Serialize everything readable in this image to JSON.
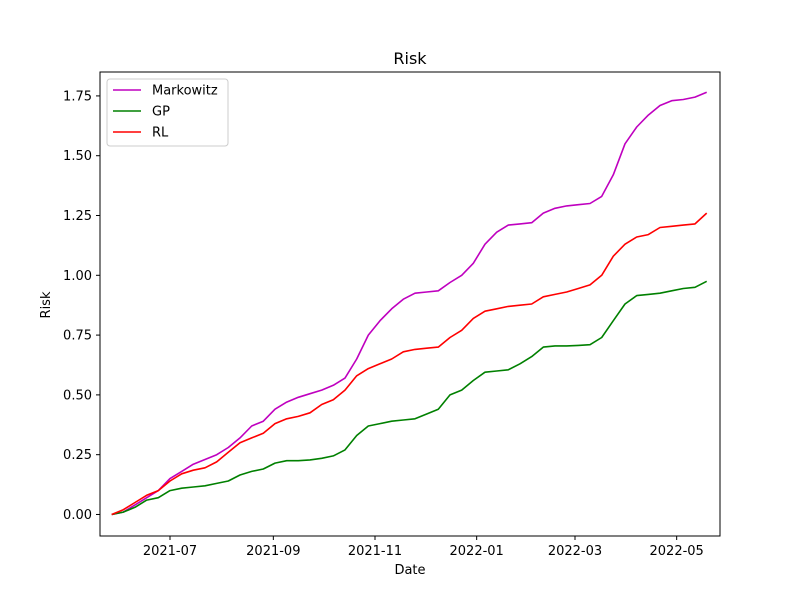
{
  "chart_data": {
    "type": "line",
    "title": "Risk",
    "xlabel": "Date",
    "ylabel": "Risk",
    "xlim": [
      "2021-05-20",
      "2022-05-27"
    ],
    "ylim": [
      -0.09,
      1.85
    ],
    "x_ticks": [
      "2021-07",
      "2021-09",
      "2021-11",
      "2022-01",
      "2022-03",
      "2022-05"
    ],
    "y_ticks": [
      "0.00",
      "0.25",
      "0.50",
      "0.75",
      "1.00",
      "1.25",
      "1.50",
      "1.75"
    ],
    "grid": false,
    "legend_placement": "upper-left",
    "series": [
      {
        "name": "Markowitz",
        "color": "#bf00bf",
        "points": [
          [
            "2021-05-27",
            0.0
          ],
          [
            "2021-06-03",
            0.01
          ],
          [
            "2021-06-10",
            0.04
          ],
          [
            "2021-06-17",
            0.07
          ],
          [
            "2021-06-24",
            0.1
          ],
          [
            "2021-07-01",
            0.15
          ],
          [
            "2021-07-08",
            0.18
          ],
          [
            "2021-07-15",
            0.21
          ],
          [
            "2021-07-22",
            0.23
          ],
          [
            "2021-07-29",
            0.25
          ],
          [
            "2021-08-05",
            0.28
          ],
          [
            "2021-08-12",
            0.32
          ],
          [
            "2021-08-19",
            0.37
          ],
          [
            "2021-08-26",
            0.39
          ],
          [
            "2021-09-02",
            0.44
          ],
          [
            "2021-09-09",
            0.47
          ],
          [
            "2021-09-16",
            0.49
          ],
          [
            "2021-09-23",
            0.505
          ],
          [
            "2021-09-30",
            0.52
          ],
          [
            "2021-10-07",
            0.54
          ],
          [
            "2021-10-14",
            0.57
          ],
          [
            "2021-10-21",
            0.65
          ],
          [
            "2021-10-28",
            0.75
          ],
          [
            "2021-11-04",
            0.81
          ],
          [
            "2021-11-11",
            0.86
          ],
          [
            "2021-11-18",
            0.9
          ],
          [
            "2021-11-25",
            0.925
          ],
          [
            "2021-12-02",
            0.93
          ],
          [
            "2021-12-09",
            0.935
          ],
          [
            "2021-12-16",
            0.97
          ],
          [
            "2021-12-23",
            1.0
          ],
          [
            "2021-12-30",
            1.05
          ],
          [
            "2022-01-06",
            1.13
          ],
          [
            "2022-01-13",
            1.18
          ],
          [
            "2022-01-20",
            1.21
          ],
          [
            "2022-01-27",
            1.215
          ],
          [
            "2022-02-03",
            1.22
          ],
          [
            "2022-02-10",
            1.26
          ],
          [
            "2022-02-17",
            1.28
          ],
          [
            "2022-02-24",
            1.29
          ],
          [
            "2022-03-03",
            1.295
          ],
          [
            "2022-03-10",
            1.3
          ],
          [
            "2022-03-17",
            1.33
          ],
          [
            "2022-03-24",
            1.42
          ],
          [
            "2022-03-31",
            1.55
          ],
          [
            "2022-04-07",
            1.62
          ],
          [
            "2022-04-14",
            1.67
          ],
          [
            "2022-04-21",
            1.71
          ],
          [
            "2022-04-28",
            1.73
          ],
          [
            "2022-05-05",
            1.735
          ],
          [
            "2022-05-12",
            1.745
          ],
          [
            "2022-05-19",
            1.765
          ]
        ]
      },
      {
        "name": "GP",
        "color": "#008000",
        "points": [
          [
            "2021-05-27",
            0.0
          ],
          [
            "2021-06-03",
            0.01
          ],
          [
            "2021-06-10",
            0.03
          ],
          [
            "2021-06-17",
            0.06
          ],
          [
            "2021-06-24",
            0.07
          ],
          [
            "2021-07-01",
            0.1
          ],
          [
            "2021-07-08",
            0.11
          ],
          [
            "2021-07-15",
            0.115
          ],
          [
            "2021-07-22",
            0.12
          ],
          [
            "2021-07-29",
            0.13
          ],
          [
            "2021-08-05",
            0.14
          ],
          [
            "2021-08-12",
            0.165
          ],
          [
            "2021-08-19",
            0.18
          ],
          [
            "2021-08-26",
            0.19
          ],
          [
            "2021-09-02",
            0.215
          ],
          [
            "2021-09-09",
            0.225
          ],
          [
            "2021-09-16",
            0.225
          ],
          [
            "2021-09-23",
            0.228
          ],
          [
            "2021-09-30",
            0.235
          ],
          [
            "2021-10-07",
            0.245
          ],
          [
            "2021-10-14",
            0.27
          ],
          [
            "2021-10-21",
            0.33
          ],
          [
            "2021-10-28",
            0.37
          ],
          [
            "2021-11-04",
            0.38
          ],
          [
            "2021-11-11",
            0.39
          ],
          [
            "2021-11-18",
            0.395
          ],
          [
            "2021-11-25",
            0.4
          ],
          [
            "2021-12-02",
            0.42
          ],
          [
            "2021-12-09",
            0.44
          ],
          [
            "2021-12-16",
            0.5
          ],
          [
            "2021-12-23",
            0.52
          ],
          [
            "2021-12-30",
            0.56
          ],
          [
            "2022-01-06",
            0.595
          ],
          [
            "2022-01-13",
            0.6
          ],
          [
            "2022-01-20",
            0.605
          ],
          [
            "2022-01-27",
            0.63
          ],
          [
            "2022-02-03",
            0.66
          ],
          [
            "2022-02-10",
            0.7
          ],
          [
            "2022-02-17",
            0.705
          ],
          [
            "2022-02-24",
            0.705
          ],
          [
            "2022-03-03",
            0.707
          ],
          [
            "2022-03-10",
            0.71
          ],
          [
            "2022-03-17",
            0.74
          ],
          [
            "2022-03-24",
            0.81
          ],
          [
            "2022-03-31",
            0.88
          ],
          [
            "2022-04-07",
            0.915
          ],
          [
            "2022-04-14",
            0.92
          ],
          [
            "2022-04-21",
            0.925
          ],
          [
            "2022-04-28",
            0.935
          ],
          [
            "2022-05-05",
            0.945
          ],
          [
            "2022-05-12",
            0.95
          ],
          [
            "2022-05-19",
            0.975
          ]
        ]
      },
      {
        "name": "RL",
        "color": "#ff0000",
        "points": [
          [
            "2021-05-27",
            0.0
          ],
          [
            "2021-06-03",
            0.02
          ],
          [
            "2021-06-10",
            0.05
          ],
          [
            "2021-06-17",
            0.08
          ],
          [
            "2021-06-24",
            0.1
          ],
          [
            "2021-07-01",
            0.14
          ],
          [
            "2021-07-08",
            0.17
          ],
          [
            "2021-07-15",
            0.185
          ],
          [
            "2021-07-22",
            0.195
          ],
          [
            "2021-07-29",
            0.22
          ],
          [
            "2021-08-05",
            0.26
          ],
          [
            "2021-08-12",
            0.3
          ],
          [
            "2021-08-19",
            0.32
          ],
          [
            "2021-08-26",
            0.34
          ],
          [
            "2021-09-02",
            0.38
          ],
          [
            "2021-09-09",
            0.4
          ],
          [
            "2021-09-16",
            0.41
          ],
          [
            "2021-09-23",
            0.425
          ],
          [
            "2021-09-30",
            0.46
          ],
          [
            "2021-10-07",
            0.48
          ],
          [
            "2021-10-14",
            0.52
          ],
          [
            "2021-10-21",
            0.58
          ],
          [
            "2021-10-28",
            0.61
          ],
          [
            "2021-11-04",
            0.63
          ],
          [
            "2021-11-11",
            0.65
          ],
          [
            "2021-11-18",
            0.68
          ],
          [
            "2021-11-25",
            0.69
          ],
          [
            "2021-12-02",
            0.695
          ],
          [
            "2021-12-09",
            0.7
          ],
          [
            "2021-12-16",
            0.74
          ],
          [
            "2021-12-23",
            0.77
          ],
          [
            "2021-12-30",
            0.82
          ],
          [
            "2022-01-06",
            0.85
          ],
          [
            "2022-01-13",
            0.86
          ],
          [
            "2022-01-20",
            0.87
          ],
          [
            "2022-01-27",
            0.875
          ],
          [
            "2022-02-03",
            0.88
          ],
          [
            "2022-02-10",
            0.91
          ],
          [
            "2022-02-17",
            0.92
          ],
          [
            "2022-02-24",
            0.93
          ],
          [
            "2022-03-03",
            0.945
          ],
          [
            "2022-03-10",
            0.96
          ],
          [
            "2022-03-17",
            1.0
          ],
          [
            "2022-03-24",
            1.08
          ],
          [
            "2022-03-31",
            1.13
          ],
          [
            "2022-04-07",
            1.16
          ],
          [
            "2022-04-14",
            1.17
          ],
          [
            "2022-04-21",
            1.2
          ],
          [
            "2022-04-28",
            1.205
          ],
          [
            "2022-05-05",
            1.21
          ],
          [
            "2022-05-12",
            1.215
          ],
          [
            "2022-05-19",
            1.26
          ]
        ]
      }
    ]
  }
}
